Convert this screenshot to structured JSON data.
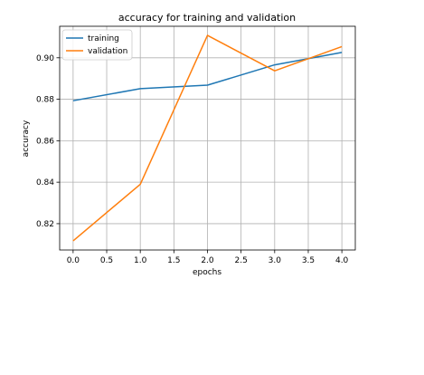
{
  "chart_data": {
    "type": "line",
    "title": "accuracy for training and validation",
    "xlabel": "epochs",
    "ylabel": "accuracy",
    "x": [
      0,
      1,
      2,
      3,
      4
    ],
    "series": [
      {
        "name": "training",
        "color": "#1f77b4",
        "values": [
          0.8793,
          0.8851,
          0.8868,
          0.8966,
          0.9026
        ]
      },
      {
        "name": "validation",
        "color": "#ff7f0e",
        "values": [
          0.8117,
          0.839,
          0.9108,
          0.8937,
          0.9054
        ]
      }
    ],
    "xlim": [
      -0.2,
      4.2
    ],
    "ylim": [
      0.8073,
      0.9152
    ],
    "xticks": [
      0.0,
      0.5,
      1.0,
      1.5,
      2.0,
      2.5,
      3.0,
      3.5,
      4.0
    ],
    "xtick_labels": [
      "0.0",
      "0.5",
      "1.0",
      "1.5",
      "2.0",
      "2.5",
      "3.0",
      "3.5",
      "4.0"
    ],
    "yticks": [
      0.82,
      0.84,
      0.86,
      0.88,
      0.9
    ],
    "ytick_labels": [
      "0.82",
      "0.84",
      "0.86",
      "0.88",
      "0.90"
    ],
    "grid": true,
    "legend_position": "top-left"
  }
}
